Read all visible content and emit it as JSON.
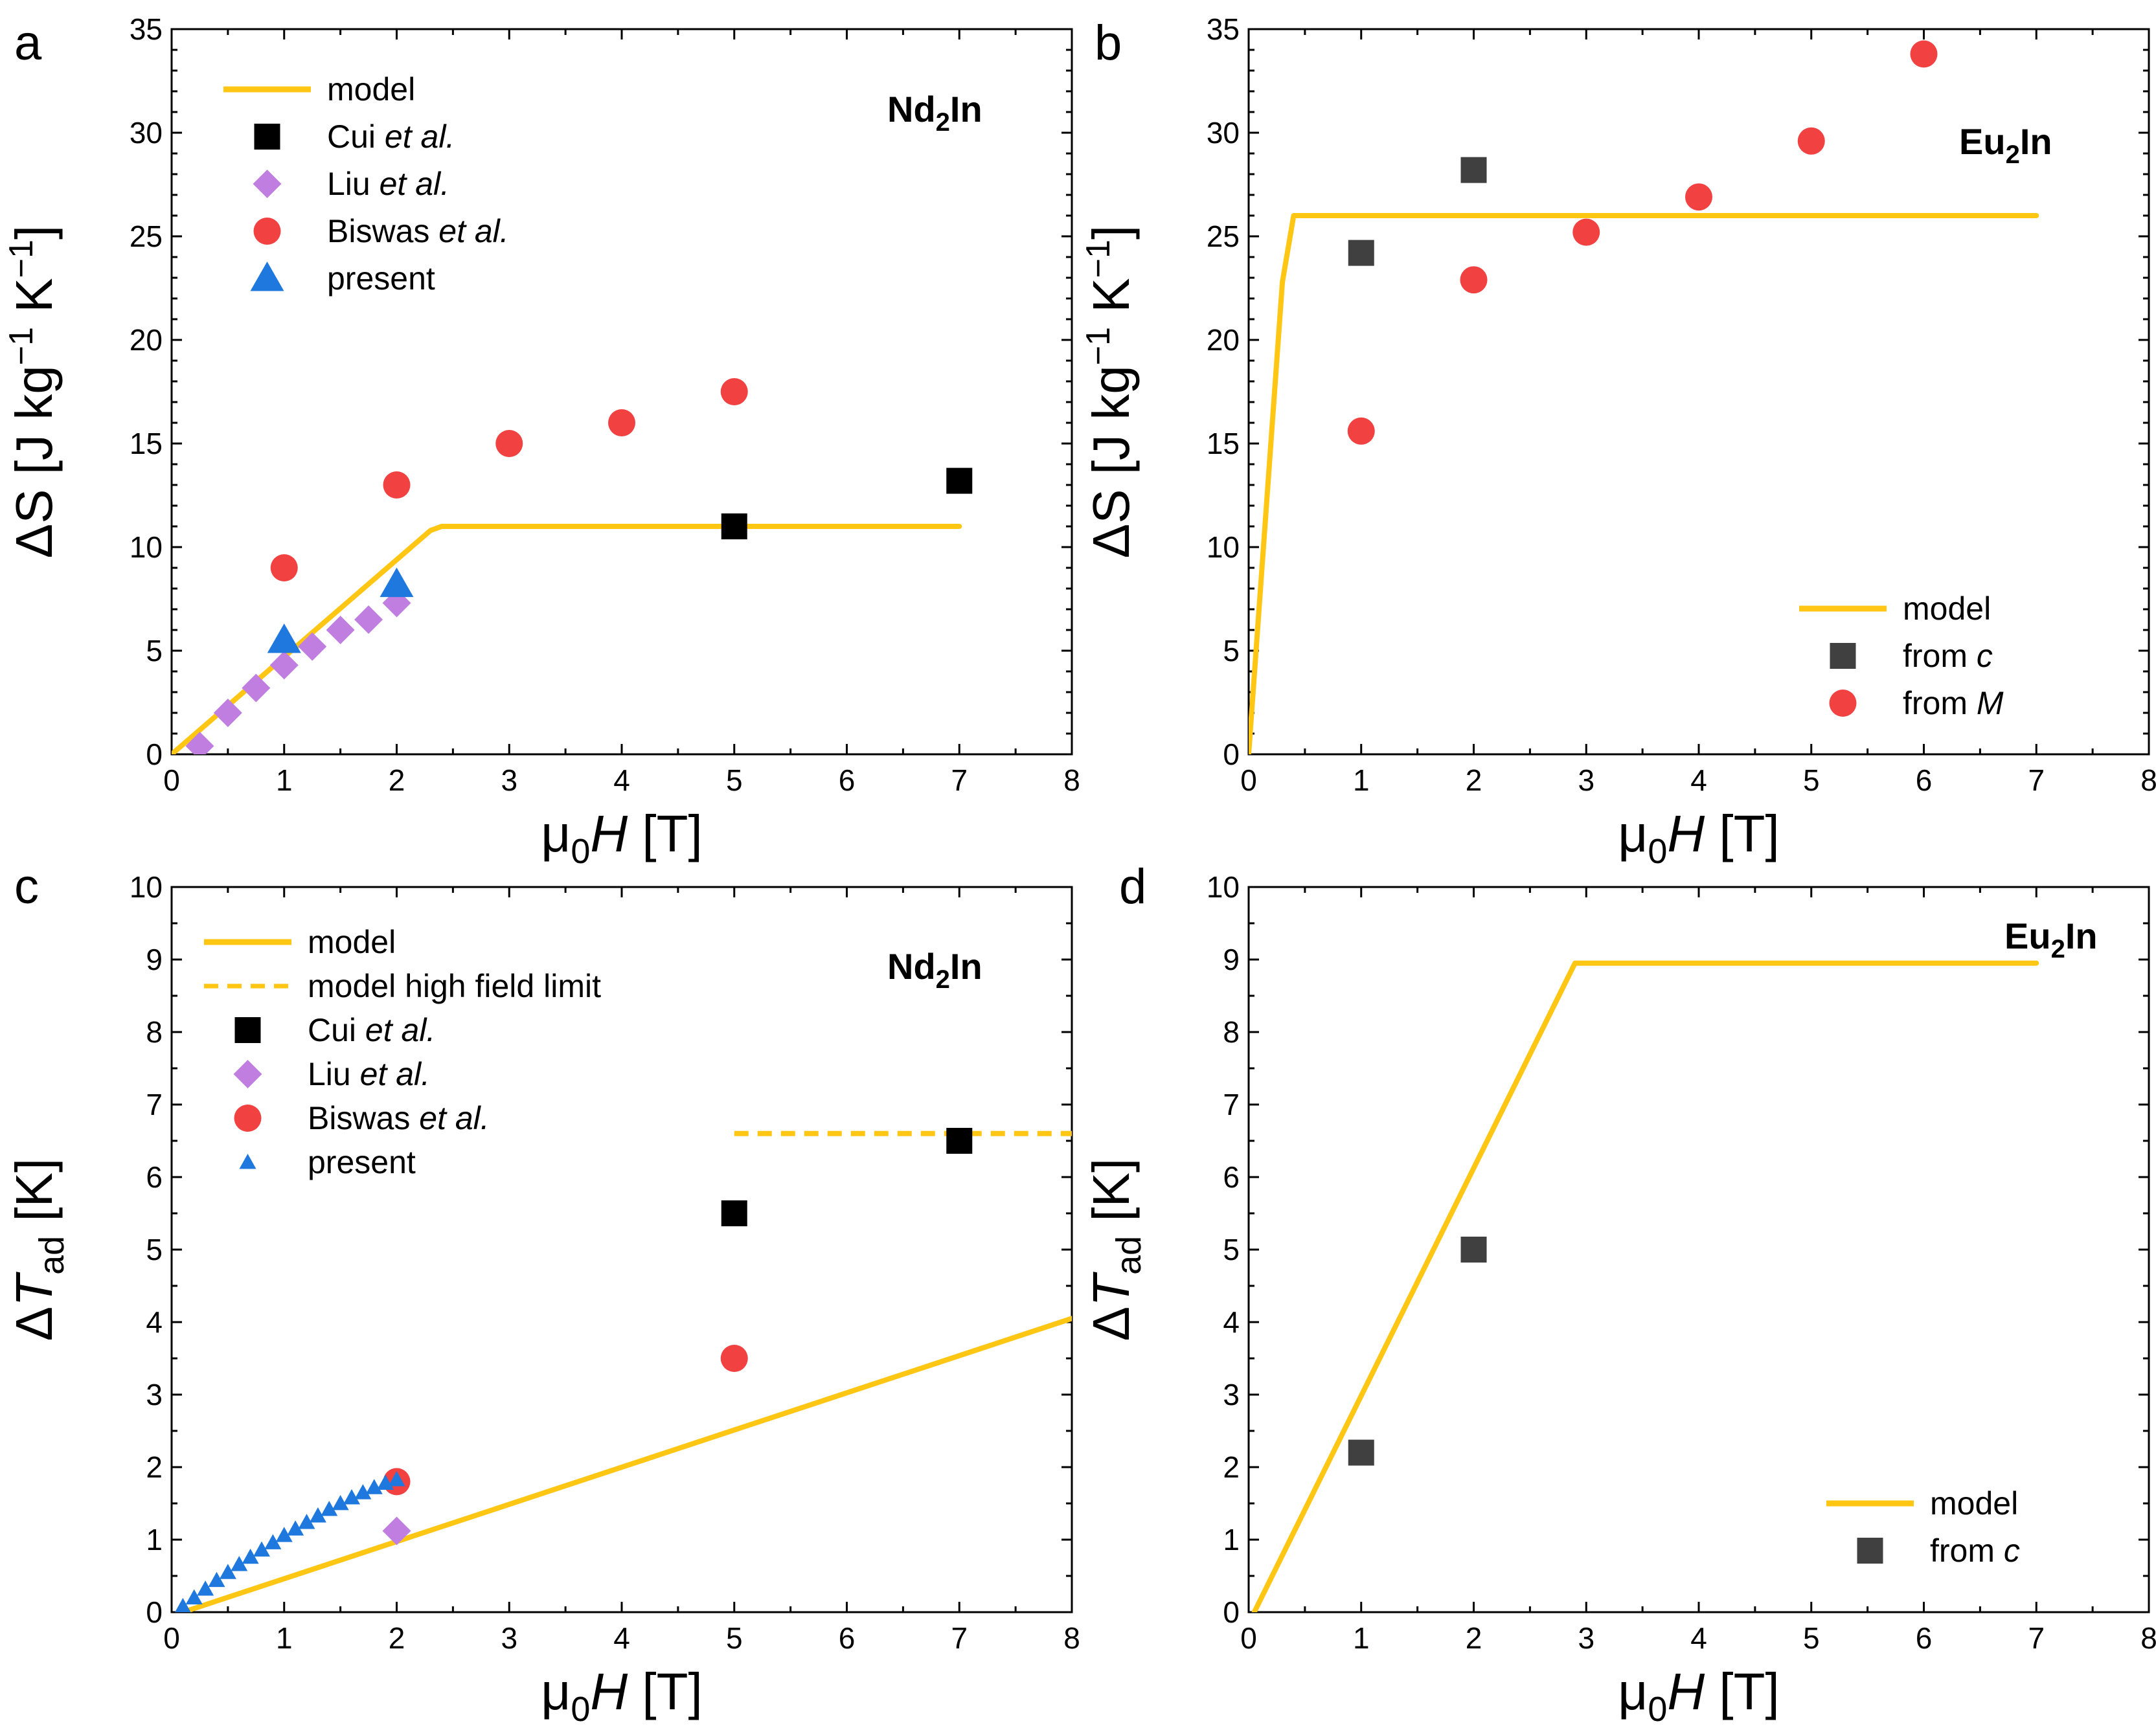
{
  "colors": {
    "model": "#FFC614",
    "black": "#000000",
    "dark": "#404040",
    "lilac": "#C07FE0",
    "red": "#F24141",
    "blue": "#1F78DE"
  },
  "chart_data": [
    {
      "id": "a",
      "type": "scatter",
      "panel_label": "a",
      "compound": {
        "base": "Nd",
        "sub": "2",
        "rest": "In"
      },
      "xlabel": {
        "prefix": "μ",
        "sub": "0",
        "italic": "H",
        "unit": " [T]"
      },
      "ylabel": {
        "prefix": "ΔS [J kg",
        "sup1": "−1",
        "mid": " K",
        "sup2": "−1",
        "suffix": "]"
      },
      "xlim": [
        0,
        8
      ],
      "ylim": [
        0,
        35
      ],
      "xticks": [
        0,
        1,
        2,
        3,
        4,
        5,
        6,
        7,
        8
      ],
      "yticks": [
        0,
        5,
        10,
        15,
        20,
        25,
        30,
        35
      ],
      "legend_position": "top-left",
      "series": [
        {
          "name": "model",
          "kind": "line",
          "color": "#FFC614",
          "x": [
            0,
            2.3,
            2.4,
            7
          ],
          "y": [
            0,
            10.8,
            11,
            11
          ]
        },
        {
          "name": "Cui",
          "label_plain": "Cui ",
          "label_italic": "et al.",
          "kind": "square",
          "color": "#000000",
          "x": [
            5,
            7
          ],
          "y": [
            11,
            13.2
          ]
        },
        {
          "name": "Liu",
          "label_plain": "Liu ",
          "label_italic": "et al.",
          "kind": "diamond",
          "color": "#C07FE0",
          "x": [
            0.25,
            0.5,
            0.75,
            1,
            1.25,
            1.5,
            1.75,
            2
          ],
          "y": [
            0.4,
            2,
            3.2,
            4.3,
            5.2,
            6,
            6.5,
            7.3
          ]
        },
        {
          "name": "Biswas",
          "label_plain": "Biswas ",
          "label_italic": "et al.",
          "kind": "circle",
          "color": "#F24141",
          "x": [
            1,
            2,
            3,
            4,
            5
          ],
          "y": [
            9,
            13,
            15,
            16,
            17.5
          ]
        },
        {
          "name": "present",
          "label_plain": "present",
          "label_italic": "",
          "kind": "triangle",
          "color": "#1F78DE",
          "x": [
            1,
            2
          ],
          "y": [
            5.5,
            8.2
          ]
        }
      ]
    },
    {
      "id": "b",
      "type": "scatter",
      "panel_label": "b",
      "compound": {
        "base": "Eu",
        "sub": "2",
        "rest": "In"
      },
      "xlabel": {
        "prefix": "μ",
        "sub": "0",
        "italic": "H",
        "unit": " [T]"
      },
      "ylabel": {
        "prefix": "ΔS [J kg",
        "sup1": "−1",
        "mid": " K",
        "sup2": "−1",
        "suffix": "]"
      },
      "xlim": [
        0,
        8
      ],
      "ylim": [
        0,
        35
      ],
      "xticks": [
        0,
        1,
        2,
        3,
        4,
        5,
        6,
        7,
        8
      ],
      "yticks": [
        0,
        5,
        10,
        15,
        20,
        25,
        30,
        35
      ],
      "legend_position": "bottom-right",
      "series": [
        {
          "name": "model",
          "kind": "line",
          "color": "#FFC614",
          "x": [
            0,
            0.3,
            0.4,
            7
          ],
          "y": [
            0,
            22.8,
            26,
            26
          ]
        },
        {
          "name": "from c",
          "label_plain": "from ",
          "label_italic": "c",
          "kind": "square",
          "color": "#404040",
          "x": [
            1,
            2
          ],
          "y": [
            24.2,
            28.2
          ]
        },
        {
          "name": "from M",
          "label_plain": "from ",
          "label_italic": "M",
          "kind": "circle",
          "color": "#F24141",
          "x": [
            1,
            2,
            3,
            4,
            5,
            6
          ],
          "y": [
            15.6,
            22.9,
            25.2,
            26.9,
            29.6,
            33.8
          ]
        }
      ]
    },
    {
      "id": "c",
      "type": "scatter",
      "panel_label": "c",
      "compound": {
        "base": "Nd",
        "sub": "2",
        "rest": "In"
      },
      "xlabel": {
        "prefix": "μ",
        "sub": "0",
        "italic": "H",
        "unit": " [T]"
      },
      "ylabel": {
        "prefix": "Δ",
        "italic": "T",
        "sub": "ad",
        "suffix": " [K]"
      },
      "xlim": [
        0,
        8
      ],
      "ylim": [
        0,
        10
      ],
      "xticks": [
        0,
        1,
        2,
        3,
        4,
        5,
        6,
        7,
        8
      ],
      "yticks": [
        0,
        1,
        2,
        3,
        4,
        5,
        6,
        7,
        8,
        9,
        10
      ],
      "legend_position": "top-left",
      "series": [
        {
          "name": "model",
          "label_plain": "model",
          "label_italic": "",
          "kind": "line",
          "color": "#FFC614",
          "x": [
            0.1,
            8
          ],
          "y": [
            0,
            4.05
          ]
        },
        {
          "name": "model high field limit",
          "label_plain": "model high field limit",
          "label_italic": "",
          "kind": "dashed",
          "color": "#FFC614",
          "x": [
            5,
            8
          ],
          "y": [
            6.6,
            6.6
          ]
        },
        {
          "name": "Cui",
          "label_plain": "Cui ",
          "label_italic": "et al.",
          "kind": "square",
          "color": "#000000",
          "x": [
            5,
            7
          ],
          "y": [
            5.5,
            6.5
          ]
        },
        {
          "name": "Liu",
          "label_plain": "Liu ",
          "label_italic": "et al.",
          "kind": "diamond",
          "color": "#C07FE0",
          "x": [
            2
          ],
          "y": [
            1.12
          ]
        },
        {
          "name": "Biswas",
          "label_plain": "Biswas ",
          "label_italic": "et al.",
          "kind": "circle",
          "color": "#F24141",
          "x": [
            2,
            5
          ],
          "y": [
            1.8,
            3.5
          ]
        },
        {
          "name": "present",
          "label_plain": "present",
          "label_italic": "",
          "kind": "small-triangle",
          "color": "#1F78DE",
          "x": [
            0.1,
            0.2,
            0.3,
            0.4,
            0.5,
            0.6,
            0.7,
            0.8,
            0.9,
            1.0,
            1.1,
            1.2,
            1.3,
            1.4,
            1.5,
            1.6,
            1.7,
            1.8,
            1.9,
            2.0
          ],
          "y": [
            0.08,
            0.2,
            0.32,
            0.44,
            0.55,
            0.66,
            0.76,
            0.86,
            0.96,
            1.06,
            1.15,
            1.24,
            1.33,
            1.42,
            1.5,
            1.58,
            1.65,
            1.72,
            1.78,
            1.83
          ]
        }
      ]
    },
    {
      "id": "d",
      "type": "scatter",
      "panel_label": "d",
      "compound": {
        "base": "Eu",
        "sub": "2",
        "rest": "In"
      },
      "xlabel": {
        "prefix": "μ",
        "sub": "0",
        "italic": "H",
        "unit": " [T]"
      },
      "ylabel": {
        "prefix": "Δ",
        "italic": "T",
        "sub": "ad",
        "suffix": " [K]"
      },
      "xlim": [
        0,
        8
      ],
      "ylim": [
        0,
        10
      ],
      "xticks": [
        0,
        1,
        2,
        3,
        4,
        5,
        6,
        7,
        8
      ],
      "yticks": [
        0,
        1,
        2,
        3,
        4,
        5,
        6,
        7,
        8,
        9,
        10
      ],
      "legend_position": "bottom-right",
      "series": [
        {
          "name": "model",
          "label_plain": "model",
          "label_italic": "",
          "kind": "line",
          "color": "#FFC614",
          "x": [
            0.05,
            2.9,
            7
          ],
          "y": [
            0,
            8.95,
            8.95
          ]
        },
        {
          "name": "from c",
          "label_plain": "from ",
          "label_italic": "c",
          "kind": "square",
          "color": "#404040",
          "x": [
            1,
            2
          ],
          "y": [
            2.2,
            5
          ]
        }
      ]
    }
  ]
}
